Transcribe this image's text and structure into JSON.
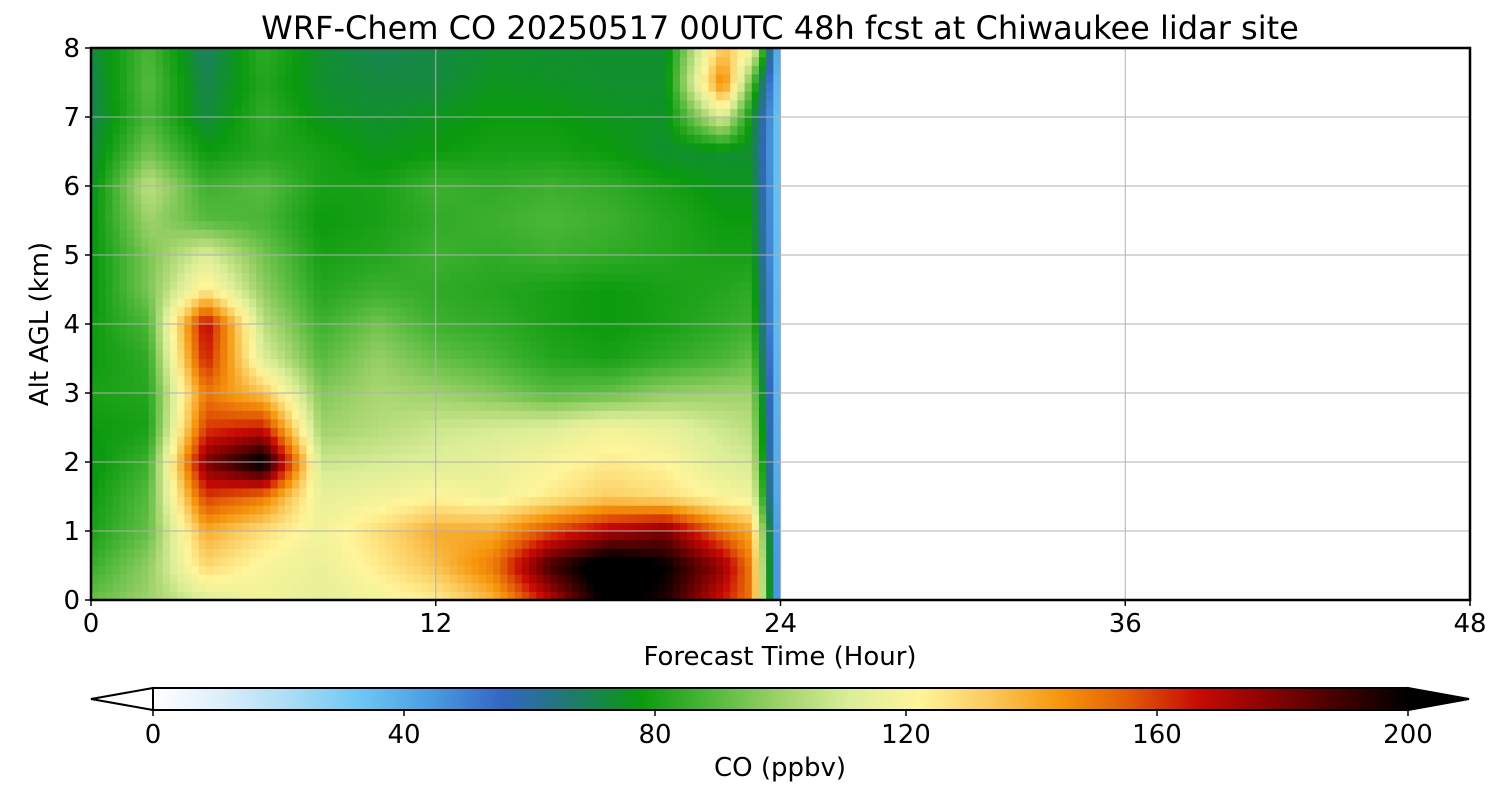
{
  "chart_data": {
    "type": "heatmap",
    "title": "WRF-Chem CO  20250517 00UTC 48h fcst at Chiwaukee lidar site",
    "xlabel": "Forecast Time (Hour)",
    "ylabel": "Alt AGL (km)",
    "xlim": [
      0,
      48
    ],
    "ylim": [
      0,
      8
    ],
    "xticks": [
      0,
      12,
      24,
      36,
      48
    ],
    "yticks": [
      0,
      1,
      2,
      3,
      4,
      5,
      6,
      7,
      8
    ],
    "grid": true,
    "data_extent_hours": [
      0,
      24
    ],
    "z_units": "ppbv",
    "colorbar": {
      "label": "CO  (ppbv)",
      "range": [
        0,
        200
      ],
      "ticks": [
        0,
        40,
        80,
        120,
        160,
        200
      ],
      "extend": "both",
      "colors": [
        "#ffffff",
        "#dbeefa",
        "#a9dbf5",
        "#6cc6f4",
        "#4a9be0",
        "#3366c4",
        "#1f7a6e",
        "#0a9a0e",
        "#4fb83a",
        "#9fd26a",
        "#dcee98",
        "#fff59a",
        "#fbc95c",
        "#f6960c",
        "#e25a06",
        "#c80a04",
        "#8a0202",
        "#440000",
        "#000000"
      ]
    },
    "levels_km": [
      0,
      0.5,
      1,
      1.5,
      2,
      2.5,
      3,
      3.5,
      4,
      4.5,
      5,
      5.5,
      6,
      6.5,
      7,
      7.5,
      8
    ],
    "times_h": [
      0,
      2,
      4,
      6,
      8,
      10,
      12,
      14,
      16,
      18,
      20,
      22,
      23,
      24
    ],
    "values": [
      [
        92,
        100,
        112,
        118,
        114,
        118,
        124,
        138,
        170,
        205,
        195,
        165,
        150,
        30
      ],
      [
        85,
        98,
        130,
        120,
        116,
        125,
        135,
        150,
        190,
        210,
        200,
        175,
        148,
        30
      ],
      [
        80,
        92,
        140,
        128,
        118,
        128,
        140,
        140,
        158,
        172,
        180,
        150,
        140,
        30
      ],
      [
        78,
        90,
        160,
        150,
        115,
        118,
        122,
        118,
        125,
        132,
        128,
        120,
        118,
        30
      ],
      [
        76,
        86,
        180,
        205,
        108,
        110,
        112,
        115,
        120,
        125,
        122,
        112,
        110,
        30
      ],
      [
        78,
        80,
        160,
        165,
        100,
        104,
        108,
        110,
        112,
        118,
        115,
        108,
        105,
        30
      ],
      [
        80,
        82,
        150,
        135,
        96,
        102,
        100,
        96,
        90,
        92,
        98,
        100,
        100,
        30
      ],
      [
        78,
        84,
        165,
        112,
        90,
        99,
        92,
        88,
        82,
        80,
        84,
        88,
        92,
        30
      ],
      [
        78,
        88,
        170,
        105,
        86,
        94,
        86,
        84,
        80,
        78,
        80,
        84,
        86,
        30
      ],
      [
        76,
        95,
        125,
        98,
        82,
        86,
        84,
        82,
        80,
        78,
        80,
        82,
        84,
        30
      ],
      [
        76,
        95,
        112,
        94,
        80,
        82,
        86,
        84,
        86,
        84,
        82,
        80,
        80,
        30
      ],
      [
        76,
        100,
        90,
        88,
        78,
        80,
        84,
        86,
        88,
        86,
        82,
        78,
        78,
        30
      ],
      [
        74,
        106,
        86,
        90,
        80,
        80,
        86,
        84,
        86,
        84,
        80,
        76,
        76,
        30
      ],
      [
        72,
        94,
        78,
        82,
        80,
        76,
        78,
        80,
        80,
        78,
        74,
        74,
        74,
        30
      ],
      [
        70,
        88,
        72,
        84,
        76,
        74,
        76,
        78,
        78,
        76,
        75,
        112,
        76,
        30
      ],
      [
        70,
        90,
        70,
        82,
        74,
        72,
        72,
        76,
        75,
        74,
        74,
        150,
        90,
        30
      ],
      [
        72,
        88,
        68,
        84,
        74,
        70,
        72,
        74,
        74,
        74,
        74,
        135,
        120,
        30
      ]
    ]
  }
}
